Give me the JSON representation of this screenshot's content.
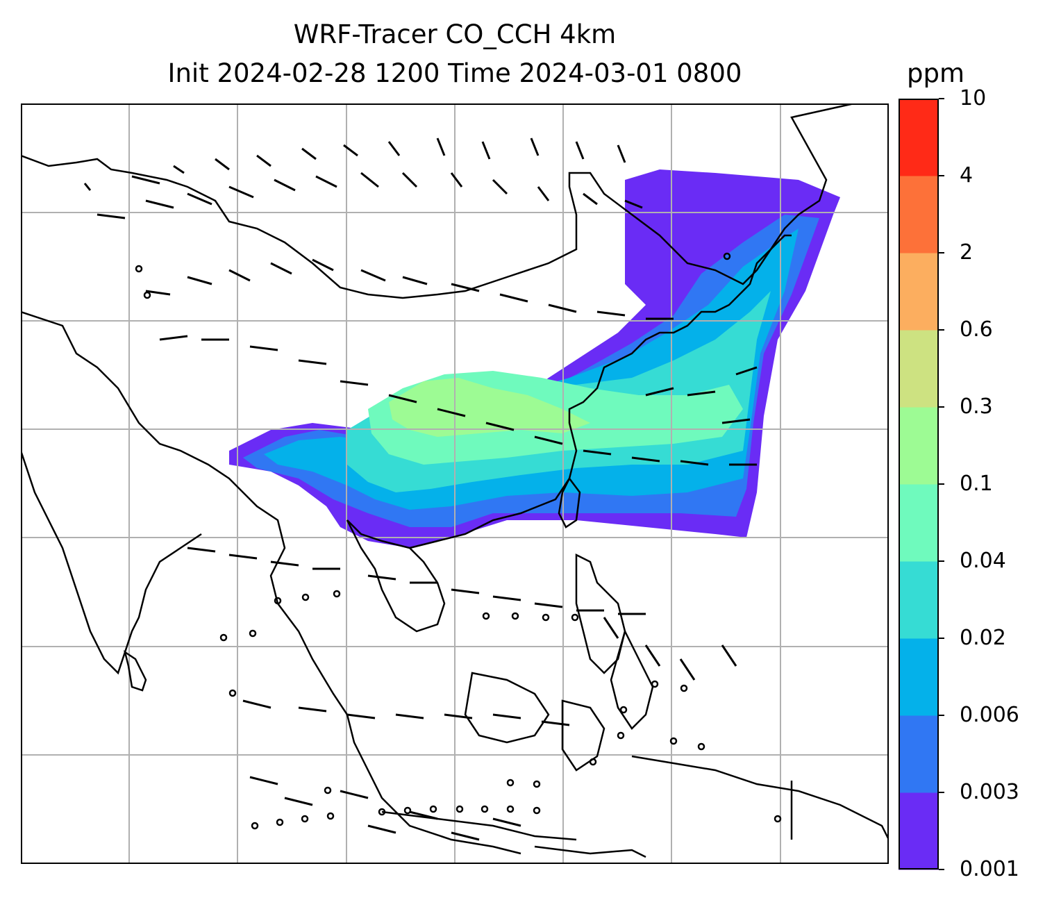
{
  "title": {
    "line1": "WRF-Tracer CO_CCH 4km",
    "line2": "Init 2024-02-28 1200 Time 2024-03-01 0800"
  },
  "colorbar": {
    "unit": "ppm",
    "ticks": [
      "0.001",
      "0.003",
      "0.006",
      "0.02",
      "0.04",
      "0.1",
      "0.3",
      "0.6",
      "2",
      "4",
      "10"
    ],
    "colors": [
      "#6a2cf5",
      "#3077f3",
      "#04b1ea",
      "#36dcd4",
      "#6ffabd",
      "#9dfb94",
      "#cde281",
      "#fcae5f",
      "#fd7139",
      "#ff2a17"
    ]
  },
  "map": {
    "projection_frame": "lat/lon grid with coastlines",
    "gridlines": true,
    "wind_barbs": true,
    "tracer_field": "CO_CCH plume over southern China extending east over East China Sea to Japan"
  }
}
